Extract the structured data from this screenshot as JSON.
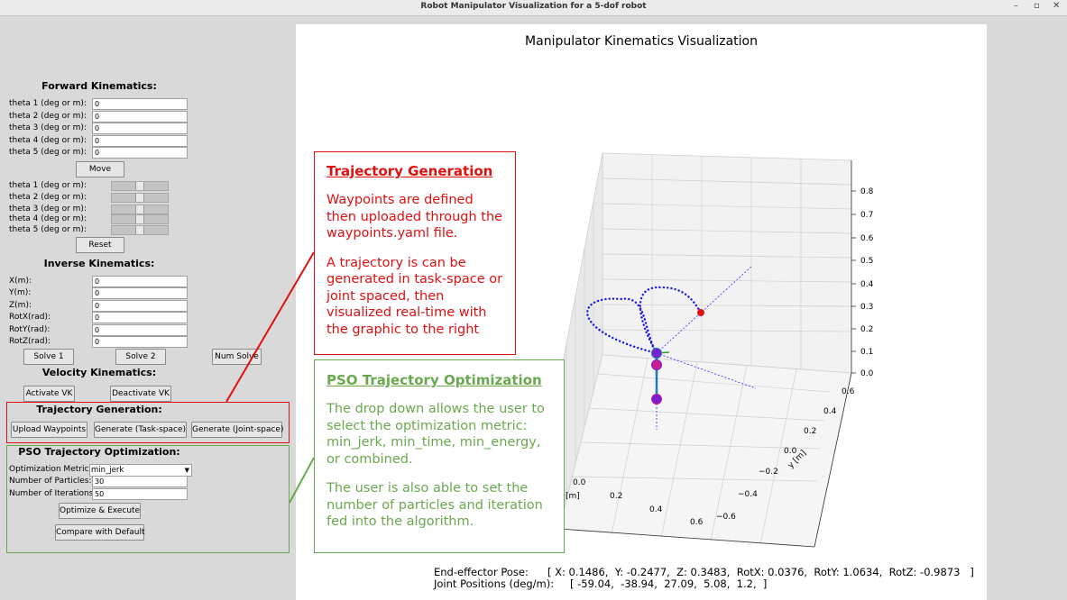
{
  "window": {
    "title": "Robot Manipulator Visualization for a 5-dof robot",
    "minimize": "–",
    "maximize": "▫",
    "close": "✕"
  },
  "fk": {
    "header": "Forward Kinematics:",
    "labels": [
      "theta 1 (deg or m):",
      "theta 2 (deg or m):",
      "theta 3 (deg or m):",
      "theta 4 (deg or m):",
      "theta 5 (deg or m):"
    ],
    "values": [
      "0",
      "0",
      "0",
      "0",
      "0"
    ],
    "move": "Move",
    "slider_labels": [
      "theta 1 (deg or m):",
      "theta 2 (deg or m):",
      "theta 3 (deg or m):",
      "theta 4 (deg or m):",
      "theta 5 (deg or m):"
    ],
    "slider_levels": [
      0.5,
      0.5,
      0.5,
      0.5,
      0.5
    ],
    "reset": "Reset"
  },
  "ik": {
    "header": "Inverse Kinematics:",
    "labels": [
      "X(m):",
      "Y(m):",
      "Z(m):",
      "RotX(rad):",
      "RotY(rad):",
      "RotZ(rad):"
    ],
    "values": [
      "0",
      "0",
      "0",
      "0",
      "0",
      "0"
    ],
    "solve1": "Solve 1",
    "solve2": "Solve 2",
    "num_solve": "Num Solve"
  },
  "vk": {
    "header": "Velocity Kinematics:",
    "activate": "Activate VK",
    "deactivate": "Deactivate VK"
  },
  "traj": {
    "header": "Trajectory Generation:",
    "upload": "Upload Waypoints",
    "gen_task": "Generate (Task-space)",
    "gen_joint": "Generate (Joint-space)"
  },
  "pso": {
    "header": "PSO Trajectory Optimization:",
    "metric_label": "Optimization Metric:",
    "metric_value": "min_jerk",
    "particles_label": "Number of Particles:",
    "particles_value": "30",
    "iterations_label": "Number of Iterations:",
    "iterations_value": "50",
    "optimize": "Optimize & Execute",
    "compare": "Compare with Default"
  },
  "plot": {
    "title": "Manipulator Kinematics Visualization",
    "z_ticks": [
      "0.8",
      "0.7",
      "0.6",
      "0.5",
      "0.4",
      "0.3",
      "0.2",
      "0.1",
      "0.0"
    ],
    "y_ticks": [
      "0.6",
      "0.4",
      "0.2",
      "0.0",
      "−0.2",
      "−0.4",
      "−0.6"
    ],
    "y_label": "y [m]",
    "x_ticks": [
      "0.0",
      "0.2",
      "0.4",
      "0.6"
    ],
    "x_label": "[m]"
  },
  "annotation_traj": {
    "title": "Trajectory Generation",
    "p1": "Waypoints are defined then uploaded through the waypoints.yaml file.",
    "p2": "A trajectory is can be generated in task-space or joint spaced, then visualized real-time with the graphic to the right",
    "color": "#e01010"
  },
  "annotation_pso": {
    "title": "PSO Trajectory Optimization",
    "p1": "The drop down allows the user to select the optimization metric: min_jerk, min_time, min_energy, or combined.",
    "p2": "The user is also able to set the number of particles and iteration fed into the algorithm.",
    "color": "#6aa84f"
  },
  "readout": {
    "pose_label": "End-effector Pose:",
    "pose_value": "[ X: 0.1486,  Y: -0.2477,  Z: 0.3483,  RotX: 0.0376,  RotY: 1.0634,  RotZ: -0.9873   ]",
    "joints_label": "Joint Positions (deg/m):",
    "joints_value": "[ -59.04,  -38.94,  27.09,  5.08,  1.2,  ]"
  }
}
